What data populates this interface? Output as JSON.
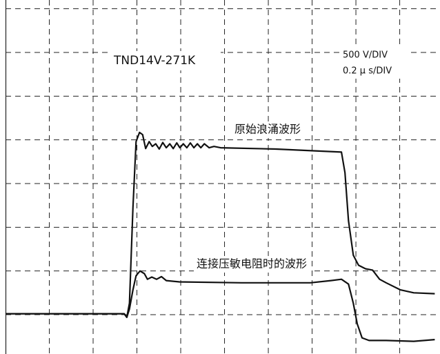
{
  "chart_data": {
    "type": "line",
    "annotations": [
      "TND14V-271K",
      "500 V/DIV",
      "0.2 μ s/DIV",
      "原始浪涌波形",
      "连接压敏电阻时的波形"
    ],
    "xlim": [
      0,
      9.92
    ],
    "ylim": [
      0.1,
      8.2
    ],
    "xticks": [
      1,
      2,
      3,
      4,
      5,
      6,
      7,
      8,
      9
    ],
    "yticks": [
      1,
      2,
      3,
      4,
      5,
      6,
      7,
      8
    ],
    "grid": true,
    "series": [
      {
        "color": "#111111",
        "x": [
          0,
          2.71,
          2.77,
          2.83,
          2.91,
          2.98,
          3.06,
          3.13,
          3.2,
          3.28,
          3.35,
          3.43,
          3.51,
          3.59,
          3.67,
          3.75,
          3.83,
          3.91,
          3.98,
          4.06,
          4.14,
          4.22,
          4.3,
          4.38,
          4.46,
          4.54,
          4.65,
          4.76,
          4.91,
          6.17,
          7.67,
          7.75,
          7.83,
          7.94,
          8.06,
          8.22,
          8.38,
          8.54,
          8.69,
          9.01,
          9.32,
          9.8
        ],
        "values": [
          1.02,
          1.02,
          0.94,
          1.26,
          3.46,
          4.96,
          5.17,
          5.12,
          4.8,
          4.96,
          4.85,
          4.91,
          4.79,
          4.94,
          4.82,
          4.91,
          4.8,
          4.93,
          4.82,
          4.91,
          4.82,
          4.93,
          4.82,
          4.91,
          4.82,
          4.91,
          4.82,
          4.85,
          4.82,
          4.79,
          4.72,
          4.25,
          3.15,
          2.36,
          2.13,
          2.05,
          2.02,
          1.81,
          1.73,
          1.57,
          1.5,
          1.48
        ]
      },
      {
        "color": "#111111",
        "x": [
          0,
          2.71,
          2.77,
          2.83,
          2.91,
          2.98,
          3.07,
          3.17,
          3.24,
          3.34,
          3.45,
          3.56,
          3.67,
          3.97,
          5.39,
          6.96,
          7.43,
          7.67,
          7.83,
          7.94,
          8.03,
          8.14,
          8.3,
          8.69,
          9.32,
          9.8
        ],
        "values": [
          1.02,
          1.02,
          0.94,
          1.13,
          1.57,
          1.89,
          2.0,
          1.94,
          1.81,
          1.86,
          1.81,
          1.87,
          1.78,
          1.75,
          1.73,
          1.73,
          1.78,
          1.81,
          1.7,
          1.26,
          0.79,
          0.47,
          0.41,
          0.41,
          0.39,
          0.43
        ]
      }
    ]
  }
}
